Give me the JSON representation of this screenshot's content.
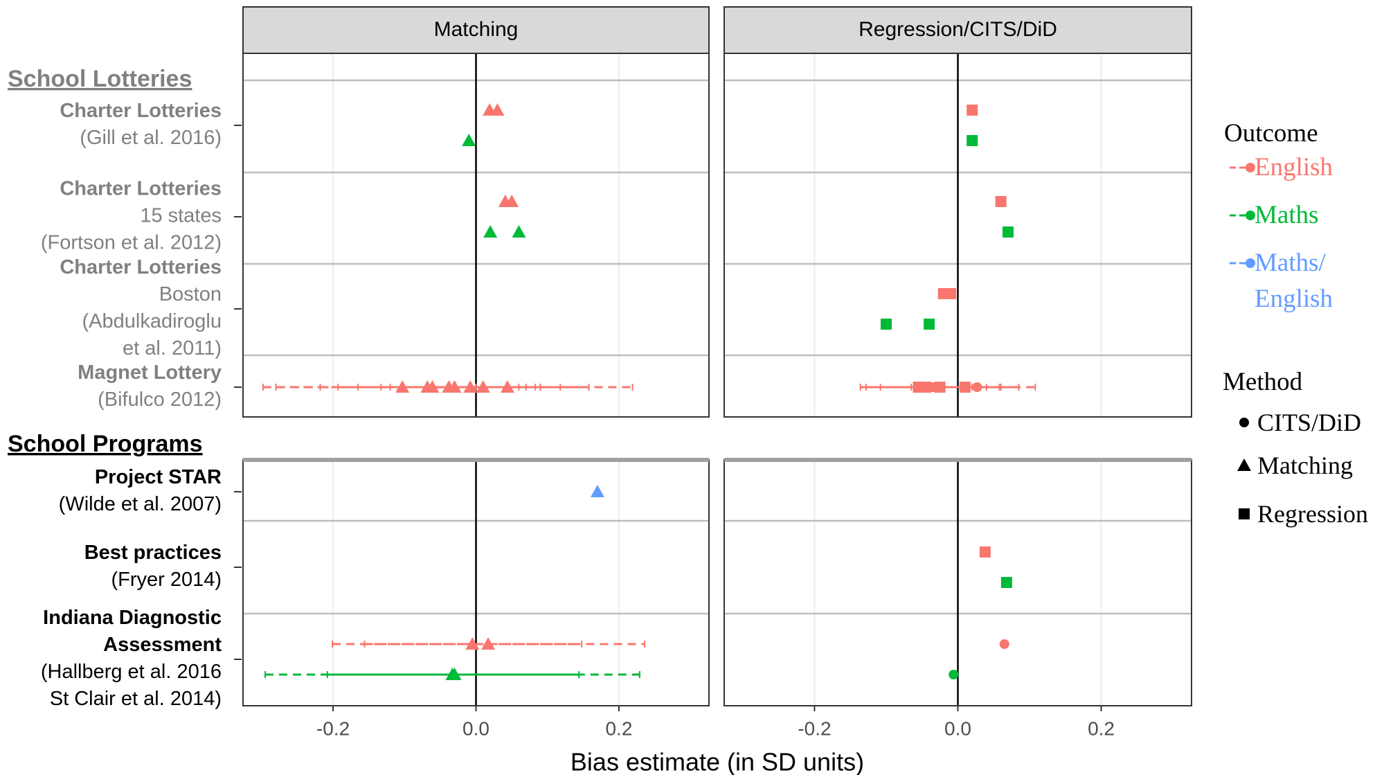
{
  "chart_data": {
    "type": "faceted-dot",
    "xlabel": "Bias estimate (in SD units)",
    "xlim": [
      -0.326,
      0.326
    ],
    "xticks": [
      -0.2,
      {
        "value": 0,
        "label": "0.0"
      },
      0.2
    ],
    "grid": true,
    "ref_line": 0,
    "groups": [
      {
        "title": "School Lotteries",
        "color": "#808080",
        "rows": [
          {
            "title": [
              "Charter Lotteries"
            ],
            "details": [
              "(Gill et al. 2016)"
            ]
          },
          {
            "title": [
              "Charter Lotteries"
            ],
            "details": [
              "15 states",
              "(Fortson et al. 2012)"
            ]
          },
          {
            "title": [
              "Charter Lotteries"
            ],
            "details": [
              "Boston",
              "(Abdulkadiroglu",
              "et al. 2011)"
            ]
          },
          {
            "title": [
              "Magnet Lottery"
            ],
            "details": [
              "(Bifulco 2012)"
            ]
          }
        ]
      },
      {
        "title": "School Programs",
        "color": "#000000",
        "rows": [
          {
            "title": [
              "Project STAR"
            ],
            "details": [
              "(Wilde et al. 2007)"
            ]
          },
          {
            "title": [
              "Best practices"
            ],
            "details": [
              "(Fryer 2014)"
            ]
          },
          {
            "title": [
              "Indiana Diagnostic",
              "Assessment"
            ],
            "details": [
              "(Hallberg et al. 2016",
              "St Clair et al. 2014)"
            ]
          }
        ]
      }
    ],
    "outcome_title": "Outcome",
    "outcomes": [
      {
        "name": "English",
        "color": "#f8766d"
      },
      {
        "name": "Maths",
        "color": "#00ba38"
      },
      {
        "name": "Maths/ English",
        "color": "#619cff"
      }
    ],
    "method_title": "Method",
    "methods": [
      {
        "name": "CITS/DiD",
        "shape": "circle"
      },
      {
        "name": "Matching",
        "shape": "triangle"
      },
      {
        "name": "Regression",
        "shape": "square"
      }
    ],
    "panels": [
      {
        "title": "Matching",
        "rows": [
          [
            {
              "outcome": "English",
              "method": "Matching",
              "x": 0.019
            },
            {
              "outcome": "English",
              "method": "Matching",
              "x": 0.03
            },
            {
              "outcome": "Maths",
              "method": "Matching",
              "x": -0.01
            }
          ],
          [
            {
              "outcome": "English",
              "method": "Matching",
              "x": 0.041
            },
            {
              "outcome": "English",
              "method": "Matching",
              "x": 0.05
            },
            {
              "outcome": "Maths",
              "method": "Matching",
              "x": 0.02
            },
            {
              "outcome": "Maths",
              "method": "Matching",
              "x": 0.06
            }
          ],
          [],
          [
            {
              "outcome": "English",
              "method": "Matching",
              "x": -0.103,
              "lo": -0.298,
              "hi": 0.09
            },
            {
              "outcome": "English",
              "method": "Matching",
              "x": -0.068,
              "lo": -0.218,
              "hi": 0.083
            },
            {
              "outcome": "English",
              "method": "Matching",
              "x": -0.061,
              "lo": -0.193,
              "hi": 0.07
            },
            {
              "outcome": "English",
              "method": "Matching",
              "x": -0.038,
              "lo": -0.165,
              "hi": 0.118
            },
            {
              "outcome": "English",
              "method": "Matching",
              "x": -0.03,
              "lo": -0.133,
              "hi": 0.158
            },
            {
              "outcome": "English",
              "method": "Matching",
              "x": -0.008,
              "lo": -0.28,
              "hi": 0.219
            },
            {
              "outcome": "English",
              "method": "Matching",
              "x": 0.01,
              "lo": -0.12,
              "hi": 0.06
            },
            {
              "outcome": "English",
              "method": "Matching",
              "x": 0.044,
              "lo": 0.0,
              "hi": 0.09
            }
          ],
          [
            {
              "outcome": "Maths/ English",
              "method": "Matching",
              "x": 0.17
            }
          ],
          [],
          [
            {
              "outcome": "English",
              "method": "Matching",
              "x": -0.005,
              "lo": -0.201,
              "hi": 0.148
            },
            {
              "outcome": "English",
              "method": "Matching",
              "x": 0.017,
              "lo": -0.156,
              "hi": 0.236
            },
            {
              "outcome": "Maths",
              "method": "Matching",
              "x": -0.033,
              "lo": -0.295,
              "hi": 0.144
            },
            {
              "outcome": "Maths",
              "method": "Matching",
              "x": -0.03,
              "lo": -0.208,
              "hi": 0.229
            }
          ]
        ]
      },
      {
        "title": "Regression/CITS/DiD",
        "rows": [
          [
            {
              "outcome": "English",
              "method": "Regression",
              "x": 0.02
            },
            {
              "outcome": "Maths",
              "method": "Regression",
              "x": 0.02
            }
          ],
          [
            {
              "outcome": "English",
              "method": "Regression",
              "x": 0.06
            },
            {
              "outcome": "Maths",
              "method": "Regression",
              "x": 0.07
            }
          ],
          [
            {
              "outcome": "English",
              "method": "Regression",
              "x": -0.02
            },
            {
              "outcome": "English",
              "method": "Regression",
              "x": -0.01
            },
            {
              "outcome": "Maths",
              "method": "Regression",
              "x": -0.1
            },
            {
              "outcome": "Maths",
              "method": "Regression",
              "x": -0.04
            }
          ],
          [
            {
              "outcome": "English",
              "method": "Regression",
              "x": -0.055,
              "lo": -0.136,
              "hi": 0.06
            },
            {
              "outcome": "English",
              "method": "Regression",
              "x": -0.045,
              "lo": -0.128,
              "hi": 0.04
            },
            {
              "outcome": "English",
              "method": "CITS/DiD",
              "x": -0.035,
              "lo": -0.108,
              "hi": 0.085
            },
            {
              "outcome": "English",
              "method": "Regression",
              "x": -0.025,
              "lo": -0.065,
              "hi": 0.02
            },
            {
              "outcome": "English",
              "method": "Regression",
              "x": 0.01,
              "lo": -0.02,
              "hi": 0.058
            },
            {
              "outcome": "English",
              "method": "CITS/DiD",
              "x": 0.027,
              "lo": -0.04,
              "hi": 0.108
            }
          ],
          [],
          [
            {
              "outcome": "English",
              "method": "Regression",
              "x": 0.038
            },
            {
              "outcome": "Maths",
              "method": "Regression",
              "x": 0.068
            }
          ],
          [
            {
              "outcome": "English",
              "method": "CITS/DiD",
              "x": 0.065
            },
            {
              "outcome": "Maths",
              "method": "CITS/DiD",
              "x": -0.006
            }
          ]
        ]
      }
    ]
  }
}
